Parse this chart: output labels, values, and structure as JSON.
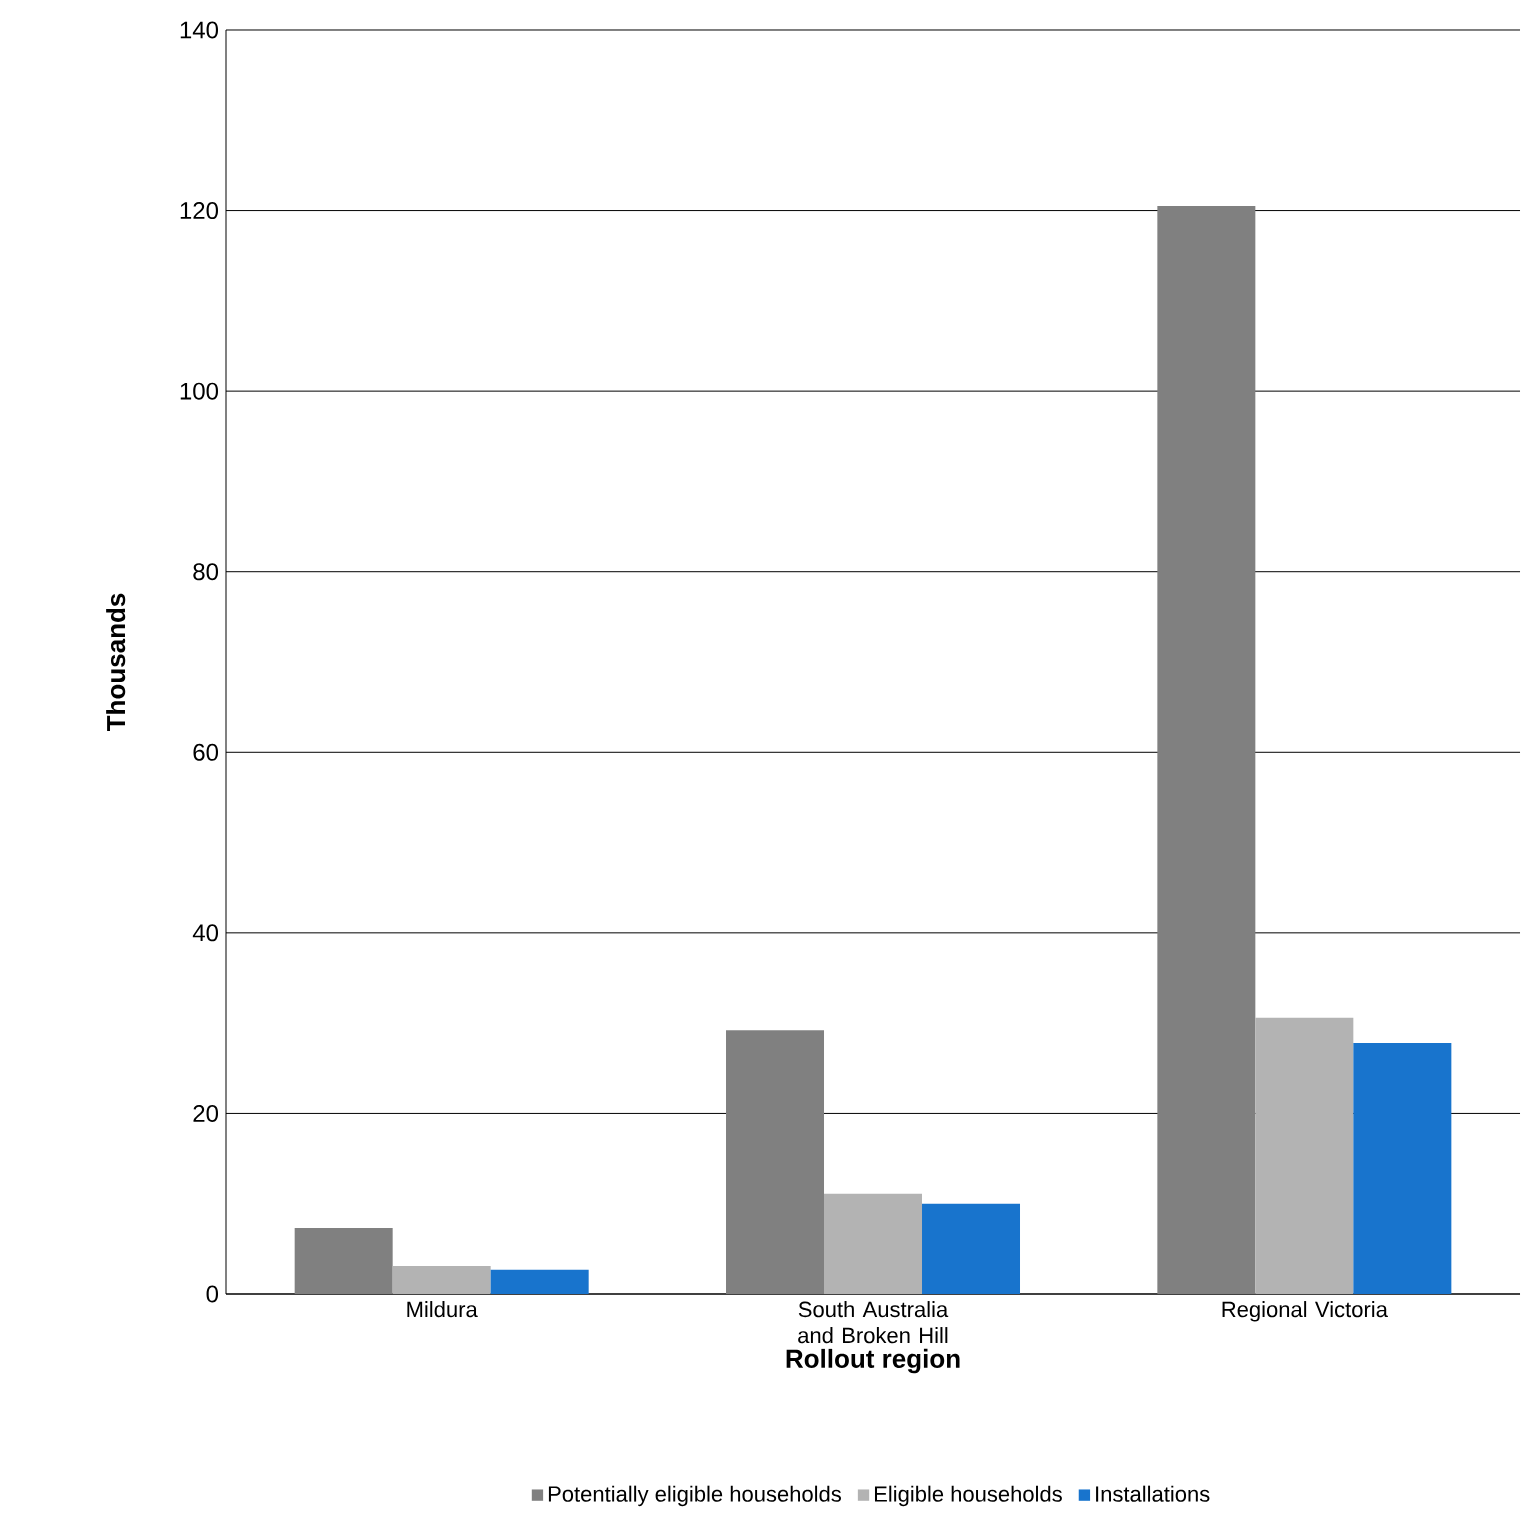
{
  "chart_data": {
    "type": "bar",
    "xlabel": "Rollout region",
    "ylabel": "Thousands",
    "categories": [
      "Mildura",
      "South Australia and Broken Hill",
      "Regional Victoria"
    ],
    "series": [
      {
        "name": "Potentially eligible households",
        "color": "#808080",
        "values": [
          7.3,
          29.2,
          120.5
        ]
      },
      {
        "name": "Eligible households",
        "color": "#b3b3b3",
        "values": [
          3.1,
          11.1,
          30.6
        ]
      },
      {
        "name": "Installations",
        "color": "#1874cd",
        "values": [
          2.7,
          10.0,
          27.8
        ]
      }
    ],
    "ylim": [
      0,
      140
    ],
    "yticks": [
      0,
      20,
      40,
      60,
      80,
      100,
      120,
      140
    ],
    "grid": "y",
    "legend": "bottom"
  }
}
